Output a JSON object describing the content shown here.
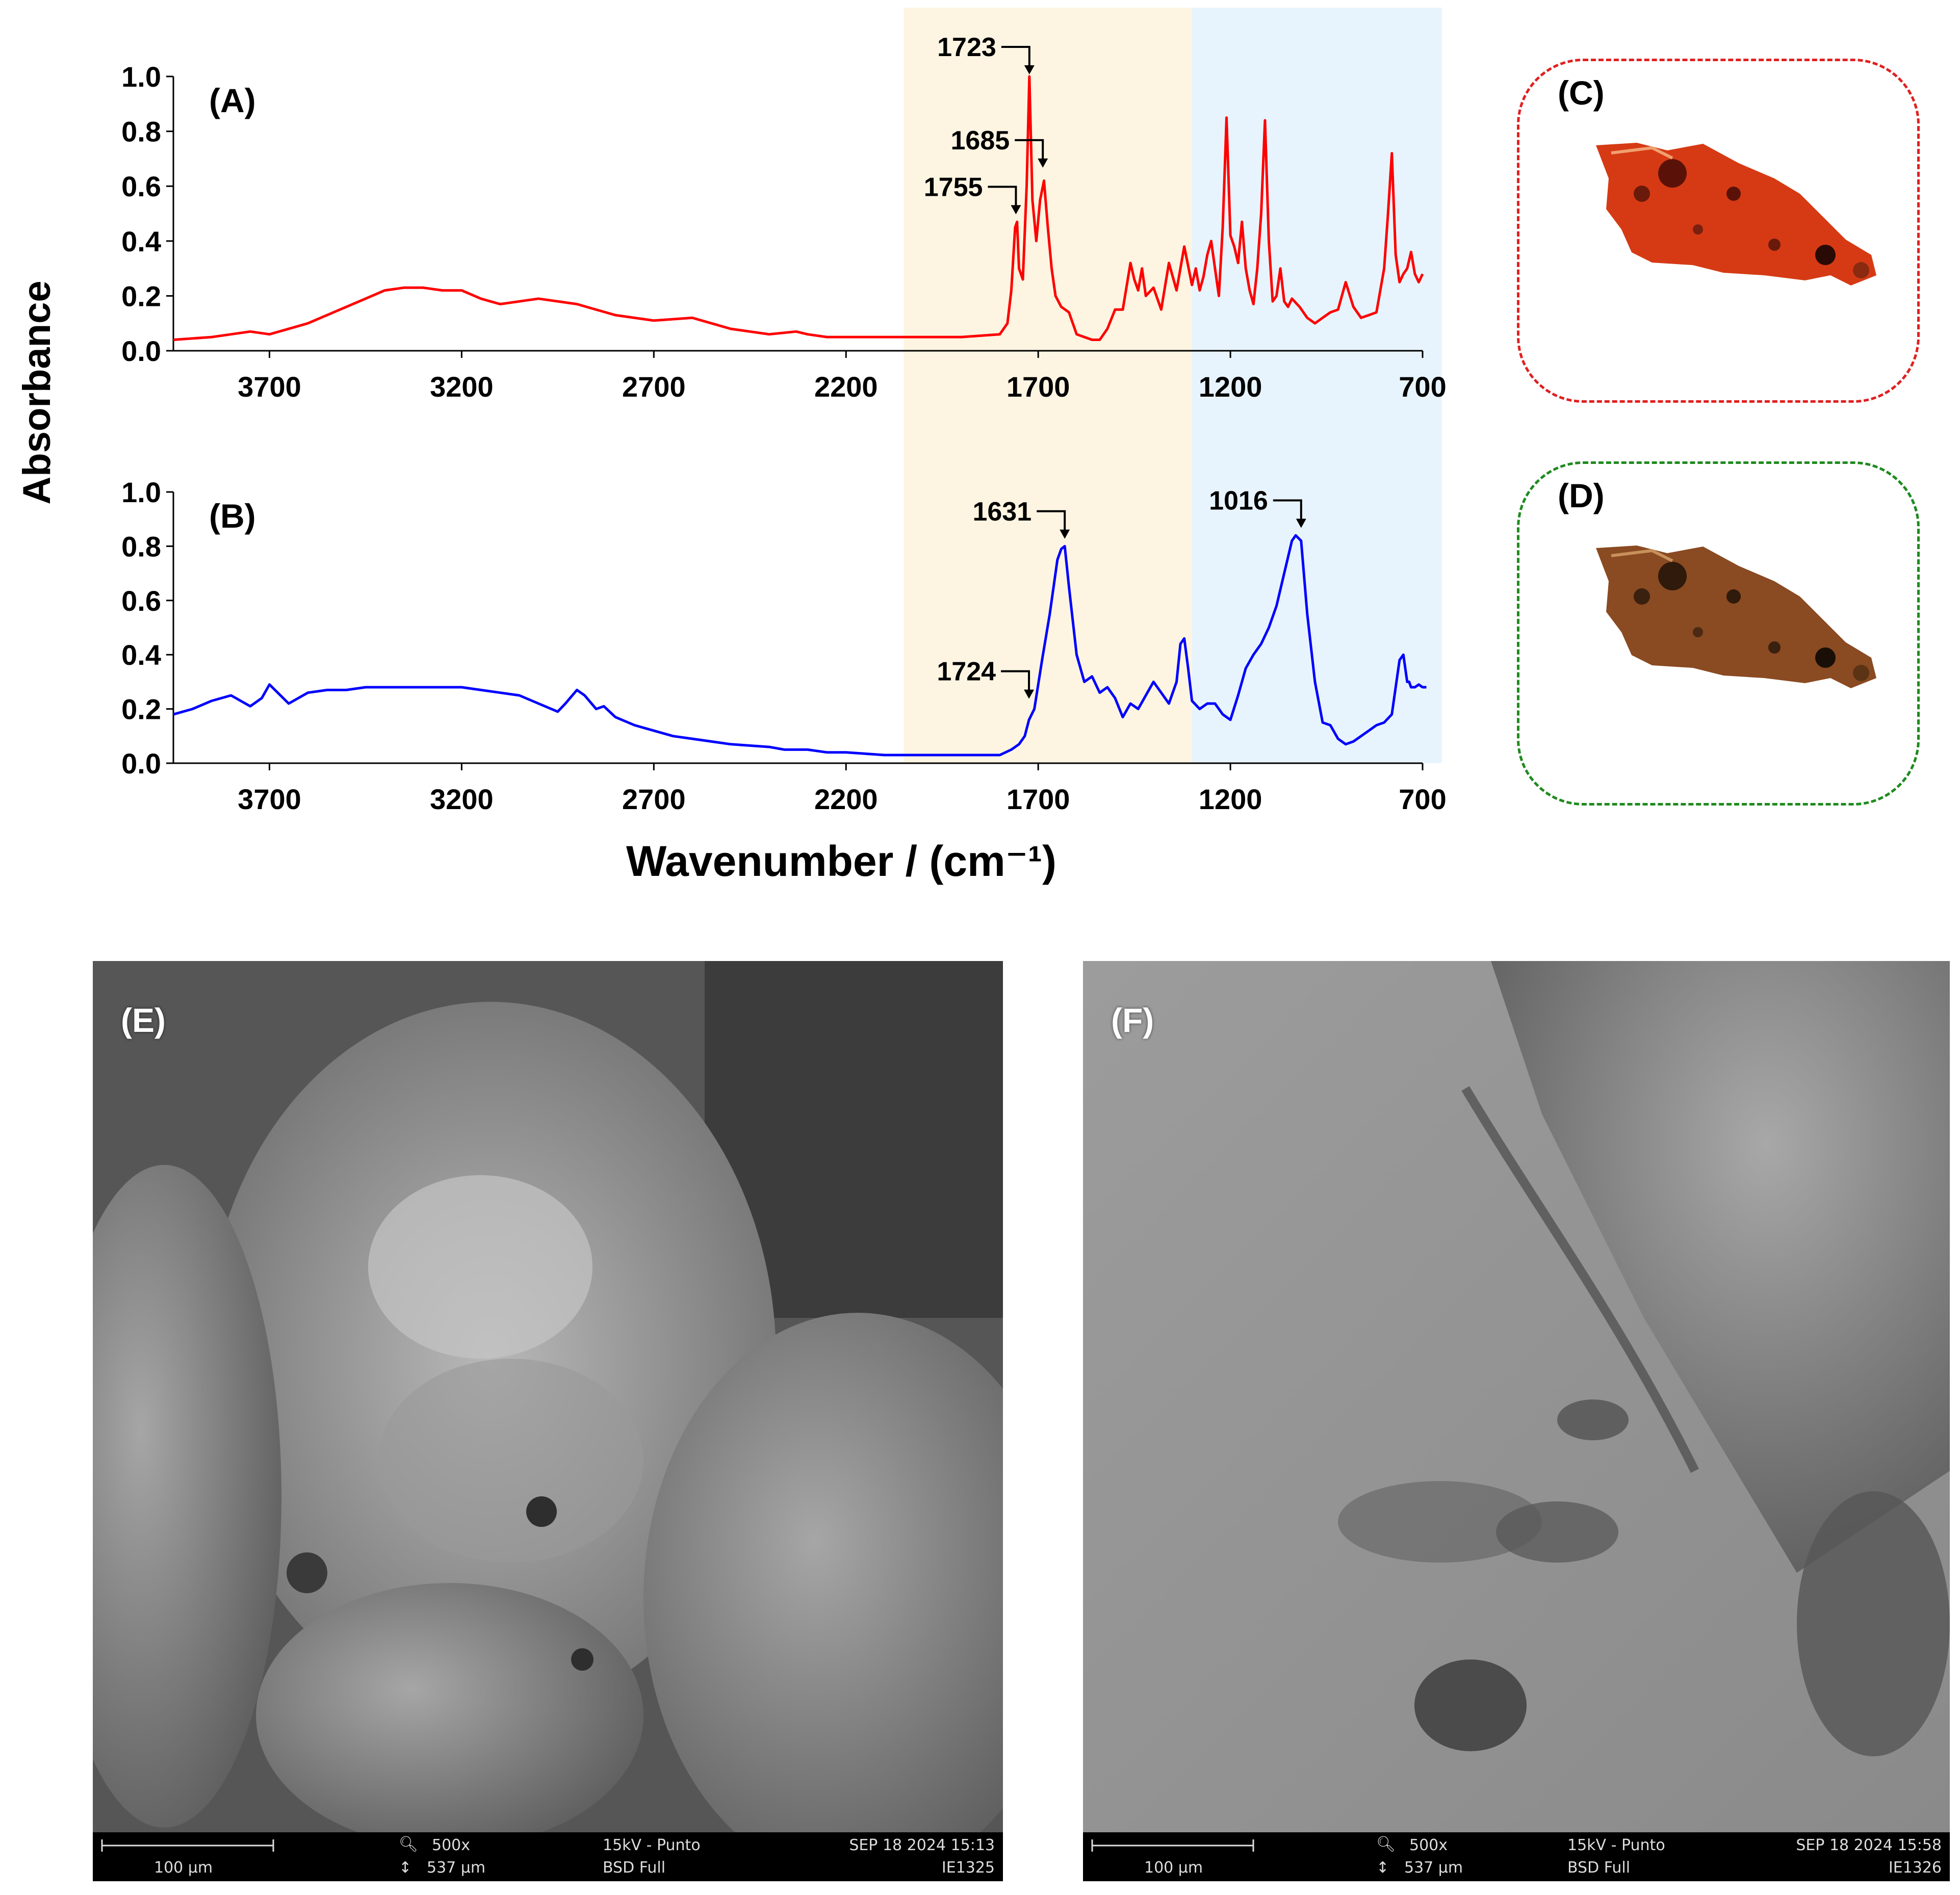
{
  "chart_data": [
    {
      "type": "line",
      "panel_label": "(A)",
      "color": "#ff0000",
      "x_reversed": true,
      "xlim": [
        3950,
        700
      ],
      "ylim": [
        0,
        1.0
      ],
      "yticks": [
        "0.0",
        "0.2",
        "0.4",
        "0.6",
        "0.8",
        "1.0"
      ],
      "xticks": [
        "3700",
        "3200",
        "2700",
        "2200",
        "1700",
        "1200",
        "700"
      ],
      "series": [
        {
          "x": [
            3950,
            3850,
            3800,
            3750,
            3700,
            3600,
            3500,
            3450,
            3400,
            3350,
            3300,
            3250,
            3200,
            3150,
            3100,
            3000,
            2900,
            2800,
            2700,
            2600,
            2500,
            2400,
            2330,
            2300,
            2250,
            2200,
            2100,
            2000,
            1900,
            1800,
            1780,
            1770,
            1760,
            1755,
            1750,
            1740,
            1730,
            1723,
            1715,
            1705,
            1695,
            1685,
            1675,
            1665,
            1655,
            1640,
            1620,
            1600,
            1580,
            1560,
            1540,
            1520,
            1500,
            1480,
            1460,
            1450,
            1440,
            1430,
            1420,
            1400,
            1380,
            1360,
            1340,
            1320,
            1300,
            1290,
            1280,
            1270,
            1260,
            1250,
            1240,
            1230,
            1220,
            1215,
            1210,
            1200,
            1190,
            1180,
            1170,
            1160,
            1150,
            1140,
            1130,
            1120,
            1110,
            1100,
            1090,
            1080,
            1070,
            1060,
            1050,
            1040,
            1020,
            1000,
            980,
            960,
            940,
            920,
            900,
            880,
            860,
            840,
            820,
            800,
            790,
            780,
            770,
            760,
            750,
            740,
            730,
            720,
            710,
            700
          ],
          "values": [
            0.04,
            0.05,
            0.06,
            0.07,
            0.06,
            0.1,
            0.16,
            0.19,
            0.22,
            0.23,
            0.23,
            0.22,
            0.22,
            0.19,
            0.17,
            0.19,
            0.17,
            0.13,
            0.11,
            0.12,
            0.08,
            0.06,
            0.07,
            0.06,
            0.05,
            0.05,
            0.05,
            0.05,
            0.05,
            0.06,
            0.1,
            0.22,
            0.45,
            0.47,
            0.3,
            0.26,
            0.6,
            1.0,
            0.55,
            0.4,
            0.55,
            0.62,
            0.45,
            0.3,
            0.2,
            0.16,
            0.14,
            0.06,
            0.05,
            0.04,
            0.04,
            0.08,
            0.15,
            0.15,
            0.32,
            0.26,
            0.22,
            0.3,
            0.2,
            0.23,
            0.15,
            0.32,
            0.22,
            0.38,
            0.24,
            0.3,
            0.22,
            0.27,
            0.35,
            0.4,
            0.3,
            0.2,
            0.45,
            0.65,
            0.85,
            0.42,
            0.38,
            0.32,
            0.47,
            0.3,
            0.22,
            0.17,
            0.3,
            0.5,
            0.84,
            0.4,
            0.18,
            0.2,
            0.3,
            0.18,
            0.16,
            0.19,
            0.16,
            0.12,
            0.1,
            0.12,
            0.14,
            0.15,
            0.25,
            0.16,
            0.12,
            0.13,
            0.14,
            0.3,
            0.5,
            0.72,
            0.35,
            0.25,
            0.28,
            0.3,
            0.36,
            0.28,
            0.25,
            0.28
          ]
        }
      ],
      "annotations": [
        {
          "text": "1723",
          "x": 1723,
          "y": 1.0
        },
        {
          "text": "1685",
          "x": 1688,
          "y": 0.66
        },
        {
          "text": "1755",
          "x": 1758,
          "y": 0.49
        }
      ]
    },
    {
      "type": "line",
      "panel_label": "(B)",
      "color": "#0000ff",
      "x_reversed": true,
      "xlim": [
        3950,
        700
      ],
      "ylim": [
        0,
        1.0
      ],
      "yticks": [
        "0.0",
        "0.2",
        "0.4",
        "0.6",
        "0.8",
        "1.0"
      ],
      "xticks": [
        "3700",
        "3200",
        "2700",
        "2200",
        "1700",
        "1200",
        "700"
      ],
      "series": [
        {
          "x": [
            3950,
            3900,
            3850,
            3800,
            3750,
            3720,
            3700,
            3650,
            3600,
            3550,
            3500,
            3450,
            3400,
            3350,
            3300,
            3250,
            3200,
            3150,
            3100,
            3050,
            3000,
            2950,
            2930,
            2900,
            2880,
            2850,
            2830,
            2800,
            2750,
            2700,
            2650,
            2600,
            2500,
            2400,
            2360,
            2340,
            2320,
            2300,
            2250,
            2200,
            2100,
            2000,
            1900,
            1800,
            1770,
            1750,
            1735,
            1724,
            1710,
            1690,
            1670,
            1650,
            1640,
            1631,
            1620,
            1600,
            1580,
            1560,
            1540,
            1520,
            1500,
            1480,
            1460,
            1440,
            1420,
            1400,
            1380,
            1360,
            1340,
            1330,
            1320,
            1310,
            1300,
            1280,
            1260,
            1240,
            1220,
            1200,
            1180,
            1160,
            1140,
            1120,
            1100,
            1080,
            1060,
            1040,
            1030,
            1016,
            1000,
            980,
            960,
            940,
            920,
            900,
            880,
            860,
            840,
            820,
            800,
            780,
            760,
            750,
            740,
            735,
            730,
            720,
            710,
            700,
            690
          ],
          "values": [
            0.18,
            0.2,
            0.23,
            0.25,
            0.21,
            0.24,
            0.29,
            0.22,
            0.26,
            0.27,
            0.27,
            0.28,
            0.28,
            0.28,
            0.28,
            0.28,
            0.28,
            0.27,
            0.26,
            0.25,
            0.22,
            0.19,
            0.22,
            0.27,
            0.25,
            0.2,
            0.21,
            0.17,
            0.14,
            0.12,
            0.1,
            0.09,
            0.07,
            0.06,
            0.05,
            0.05,
            0.05,
            0.05,
            0.04,
            0.04,
            0.03,
            0.03,
            0.03,
            0.03,
            0.05,
            0.07,
            0.1,
            0.16,
            0.2,
            0.38,
            0.55,
            0.75,
            0.79,
            0.8,
            0.65,
            0.4,
            0.3,
            0.32,
            0.26,
            0.28,
            0.24,
            0.17,
            0.22,
            0.2,
            0.25,
            0.3,
            0.26,
            0.22,
            0.3,
            0.44,
            0.46,
            0.35,
            0.23,
            0.2,
            0.22,
            0.22,
            0.18,
            0.16,
            0.25,
            0.35,
            0.4,
            0.44,
            0.5,
            0.58,
            0.7,
            0.82,
            0.84,
            0.82,
            0.55,
            0.3,
            0.15,
            0.14,
            0.09,
            0.07,
            0.08,
            0.1,
            0.12,
            0.14,
            0.15,
            0.18,
            0.38,
            0.4,
            0.3,
            0.3,
            0.28,
            0.28,
            0.29,
            0.28,
            0.28
          ],
          "xcut": 700
        }
      ],
      "annotations": [
        {
          "text": "1631",
          "x": 1631,
          "y": 0.82
        },
        {
          "text": "1016",
          "x": 1016,
          "y": 0.86
        },
        {
          "text": "1724",
          "x": 1724,
          "y": 0.23
        }
      ]
    }
  ],
  "shared": {
    "ylabel": "Absorbance",
    "xlabel": "Wavenumber / (cm⁻¹)",
    "bands": [
      {
        "from": 2050,
        "to": 1300,
        "color": "#fdf5e2"
      },
      {
        "from": 1300,
        "to": 650,
        "color": "#e8f4fd"
      }
    ]
  },
  "photos": [
    {
      "label": "(C)",
      "border_color": "#e02020",
      "tint": "#d63a14"
    },
    {
      "label": "(D)",
      "border_color": "#1e8a1e",
      "tint": "#8a4a22"
    }
  ],
  "sem": [
    {
      "label": "(E)",
      "scale": "100 µm",
      "mag": "500x",
      "fov": "537 µm",
      "kv": "15kV - Punto",
      "detector": "BSD Full",
      "date": "SEP 18 2024 15:13",
      "id": "IE1325"
    },
    {
      "label": "(F)",
      "scale": "100 µm",
      "mag": "500x",
      "fov": "537 µm",
      "kv": "15kV - Punto",
      "detector": "BSD Full",
      "date": "SEP 18 2024 15:58",
      "id": "IE1326"
    }
  ]
}
